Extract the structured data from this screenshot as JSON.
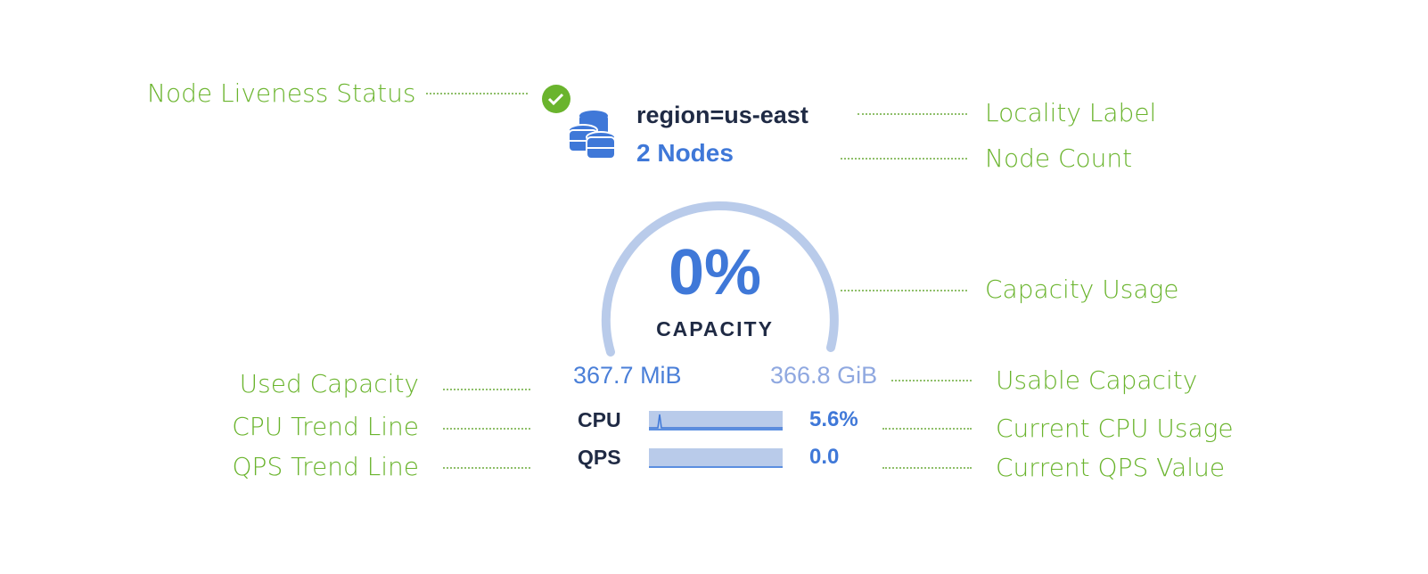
{
  "annotations": {
    "node_liveness": "Node Liveness Status",
    "locality_label": "Locality Label",
    "node_count": "Node Count",
    "capacity_usage": "Capacity Usage",
    "used_capacity": "Used Capacity",
    "usable_capacity": "Usable Capacity",
    "cpu_trend": "CPU Trend Line",
    "current_cpu": "Current CPU Usage",
    "qps_trend": "QPS Trend Line",
    "current_qps": "Current QPS Value"
  },
  "node": {
    "status_icon": "check-circle-icon",
    "status_color": "#6ab42d",
    "locality": "region=us-east",
    "node_count": "2 Nodes",
    "capacity_percent": "0%",
    "capacity_label": "CAPACITY",
    "capacity_fraction": 0.0,
    "used": "367.7 MiB",
    "usable": "366.8 GiB",
    "cpu_label": "CPU",
    "cpu_value": "5.6%",
    "qps_label": "QPS",
    "qps_value": "0.0",
    "accent": "#3f78d8"
  }
}
